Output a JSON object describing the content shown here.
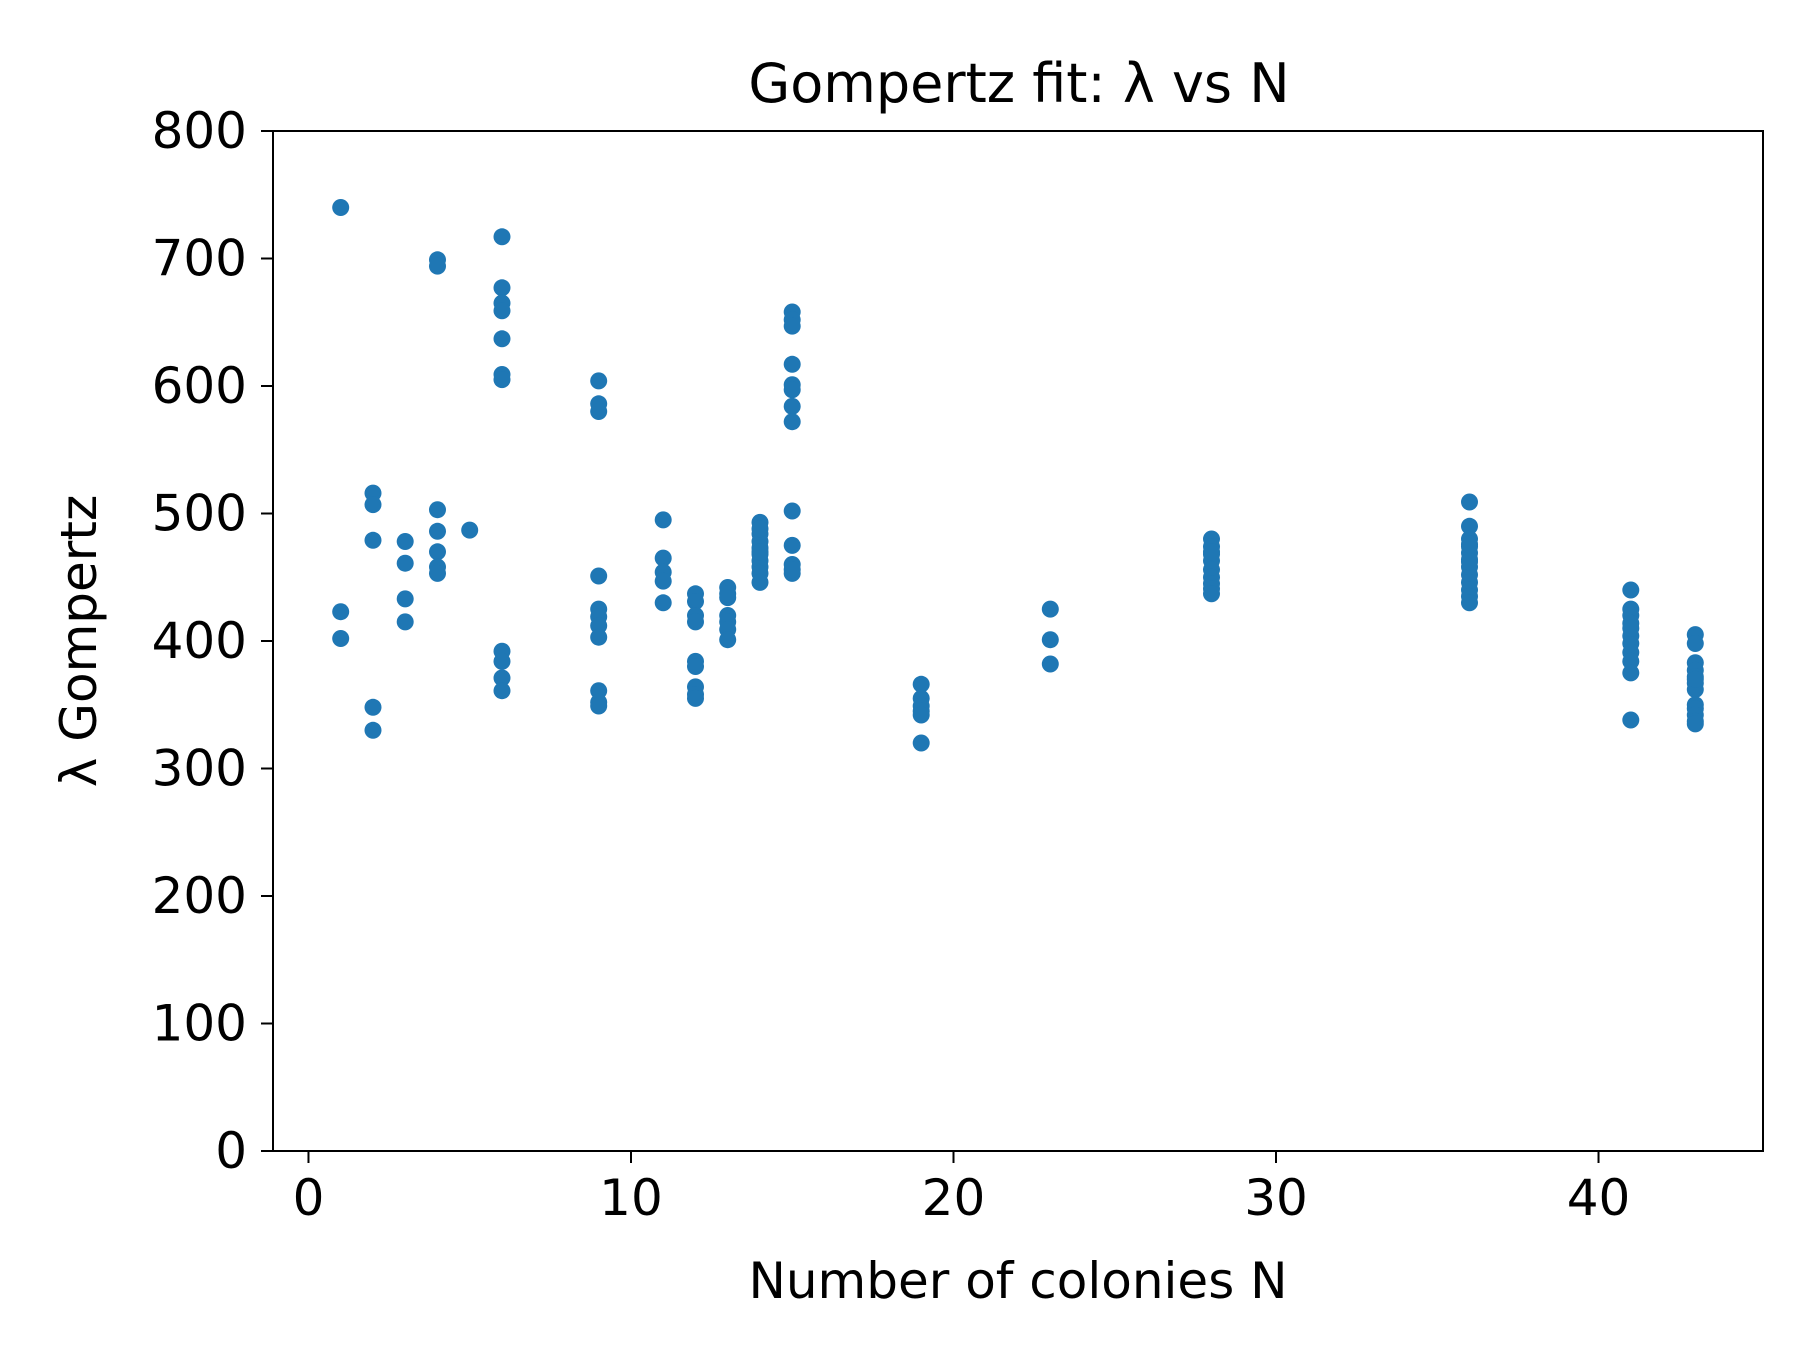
{
  "chart_data": {
    "type": "scatter",
    "title": "Gompertz fit: λ vs N",
    "xlabel": "Number of colonies N",
    "ylabel": "λ Gompertz",
    "xlim": [
      -1.1,
      45.1
    ],
    "ylim": [
      0,
      800
    ],
    "xticks": [
      0,
      10,
      20,
      30,
      40
    ],
    "yticks": [
      0,
      100,
      200,
      300,
      400,
      500,
      600,
      700,
      800
    ],
    "grid": false,
    "marker_color": "#1f77b4",
    "series": [
      {
        "x": [
          1,
          1,
          1,
          2,
          2,
          2,
          2,
          2,
          3,
          3,
          3,
          3,
          4,
          4,
          4,
          4,
          4,
          4,
          4,
          5,
          6,
          6,
          6,
          6,
          6,
          6,
          6,
          6,
          6,
          6,
          6,
          9,
          9,
          9,
          9,
          9,
          9,
          9,
          9,
          9,
          9,
          9,
          11,
          11,
          11,
          11,
          11,
          12,
          12,
          12,
          12,
          12,
          12,
          12,
          12,
          12,
          13,
          13,
          13,
          13,
          13,
          13,
          13,
          14,
          14,
          14,
          14,
          14,
          14,
          14,
          14,
          14,
          14,
          14,
          15,
          15,
          15,
          15,
          15,
          15,
          15,
          15,
          15,
          15,
          15,
          15,
          15,
          19,
          19,
          19,
          19,
          19,
          19,
          23,
          23,
          23,
          28,
          28,
          28,
          28,
          28,
          28,
          28,
          28,
          28,
          28,
          36,
          36,
          36,
          36,
          36,
          36,
          36,
          36,
          36,
          36,
          36,
          36,
          36,
          36,
          41,
          41,
          41,
          41,
          41,
          41,
          41,
          41,
          41,
          41,
          41,
          43,
          43,
          43,
          43,
          43,
          43,
          43,
          43,
          43,
          43,
          43,
          43,
          43
        ],
        "y": [
          740,
          423,
          402,
          516,
          507,
          479,
          348,
          330,
          478,
          461,
          433,
          415,
          699,
          694,
          503,
          486,
          470,
          458,
          453,
          487,
          717,
          677,
          665,
          659,
          637,
          609,
          605,
          392,
          384,
          371,
          361,
          604,
          586,
          580,
          451,
          425,
          419,
          412,
          403,
          361,
          352,
          349,
          495,
          465,
          454,
          447,
          430,
          437,
          431,
          420,
          415,
          384,
          380,
          364,
          358,
          355,
          442,
          434,
          420,
          415,
          409,
          401,
          437,
          493,
          484,
          478,
          473,
          468,
          463,
          458,
          453,
          446,
          488,
          470,
          658,
          652,
          647,
          617,
          601,
          597,
          584,
          572,
          502,
          475,
          460,
          453,
          456,
          366,
          355,
          349,
          345,
          342,
          320,
          425,
          401,
          382,
          480,
          474,
          468,
          463,
          456,
          450,
          445,
          441,
          437,
          470,
          509,
          490,
          480,
          474,
          469,
          464,
          458,
          452,
          446,
          440,
          435,
          430,
          476,
          462,
          440,
          425,
          420,
          414,
          404,
          398,
          391,
          384,
          375,
          338,
          410,
          405,
          398,
          383,
          377,
          372,
          367,
          362,
          350,
          347,
          342,
          337,
          335,
          370
        ]
      }
    ]
  }
}
